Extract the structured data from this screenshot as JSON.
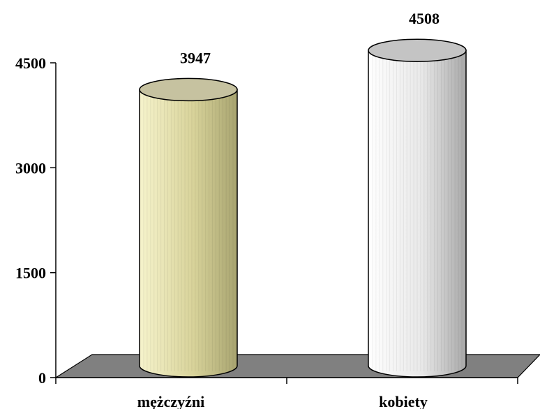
{
  "chart_data": {
    "type": "bar",
    "categories": [
      "mężczyźni",
      "kobiety"
    ],
    "values": [
      3947,
      4508
    ],
    "data_labels": [
      "3947",
      "4508"
    ],
    "yticks": [
      "0",
      "1500",
      "3000",
      "4500"
    ],
    "ylim": [
      0,
      4500
    ],
    "grid": false,
    "title": "",
    "xlabel": "",
    "ylabel": "",
    "style": "3d-cylinder",
    "colors": {
      "bar_1": [
        "#f6f3cc",
        "#d8d39a",
        "#a8a470"
      ],
      "bar_1_top": "#c6c2a0",
      "bar_2": [
        "#ffffff",
        "#e8e8e8",
        "#a8a8a8"
      ],
      "bar_2_top": "#c4c4c4",
      "floor": "#808080"
    }
  }
}
